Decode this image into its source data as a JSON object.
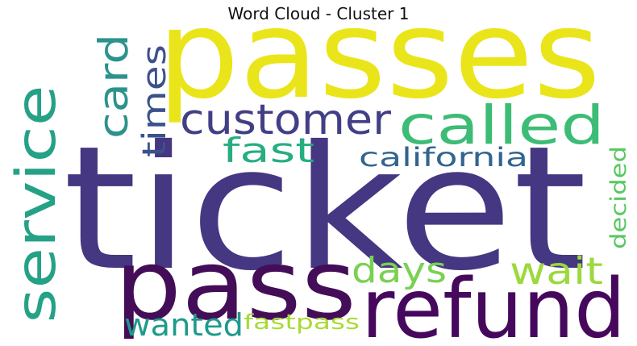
{
  "title": "Word Cloud - Cluster 1",
  "words": [
    {
      "text": "ticket",
      "color": "#453781"
    },
    {
      "text": "passes",
      "color": "#eae51a"
    },
    {
      "text": "pass",
      "color": "#440d57"
    },
    {
      "text": "refund",
      "color": "#46085c"
    },
    {
      "text": "service",
      "color": "#25a186"
    },
    {
      "text": "customer",
      "color": "#423f85"
    },
    {
      "text": "called",
      "color": "#3cbc75"
    },
    {
      "text": "card",
      "color": "#2c928c"
    },
    {
      "text": "times",
      "color": "#3b518b"
    },
    {
      "text": "fast",
      "color": "#26ad81"
    },
    {
      "text": "california",
      "color": "#32658e"
    },
    {
      "text": "days",
      "color": "#79d151"
    },
    {
      "text": "wait",
      "color": "#9bd93c"
    },
    {
      "text": "decided",
      "color": "#59c864"
    },
    {
      "text": "wanted",
      "color": "#1f9a8a"
    },
    {
      "text": "fastpass",
      "color": "#a8db34"
    }
  ]
}
